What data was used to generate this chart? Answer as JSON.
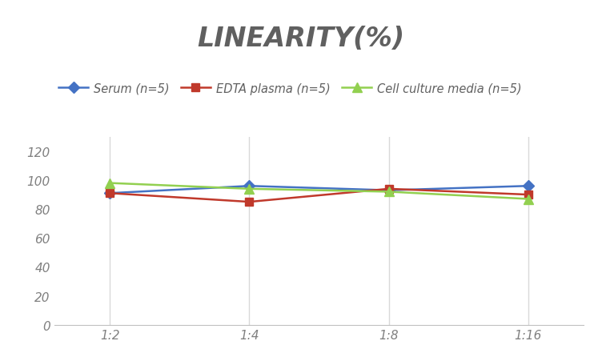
{
  "title": "LINEARITY(%)",
  "title_fontsize": 24,
  "title_style": "italic",
  "title_weight": "bold",
  "background_color": "#ffffff",
  "x_labels": [
    "1:2",
    "1:4",
    "1:8",
    "1:16"
  ],
  "x_positions": [
    0,
    1,
    2,
    3
  ],
  "series": [
    {
      "label": "Serum (n=5)",
      "values": [
        91,
        96,
        93,
        96
      ],
      "color": "#4472C4",
      "marker": "D",
      "markersize": 7,
      "linewidth": 1.8
    },
    {
      "label": "EDTA plasma (n=5)",
      "values": [
        91,
        85,
        94,
        90
      ],
      "color": "#C0392B",
      "marker": "s",
      "markersize": 7,
      "linewidth": 1.8
    },
    {
      "label": "Cell culture media (n=5)",
      "values": [
        98,
        94,
        92,
        87
      ],
      "color": "#92D050",
      "marker": "^",
      "markersize": 9,
      "linewidth": 1.8
    }
  ],
  "ylim": [
    0,
    130
  ],
  "yticks": [
    0,
    20,
    40,
    60,
    80,
    100,
    120
  ],
  "grid_color": "#d9d9d9",
  "legend_fontsize": 10.5,
  "tick_fontsize": 11,
  "tick_color": "#808080",
  "spine_color": "#c0c0c0"
}
